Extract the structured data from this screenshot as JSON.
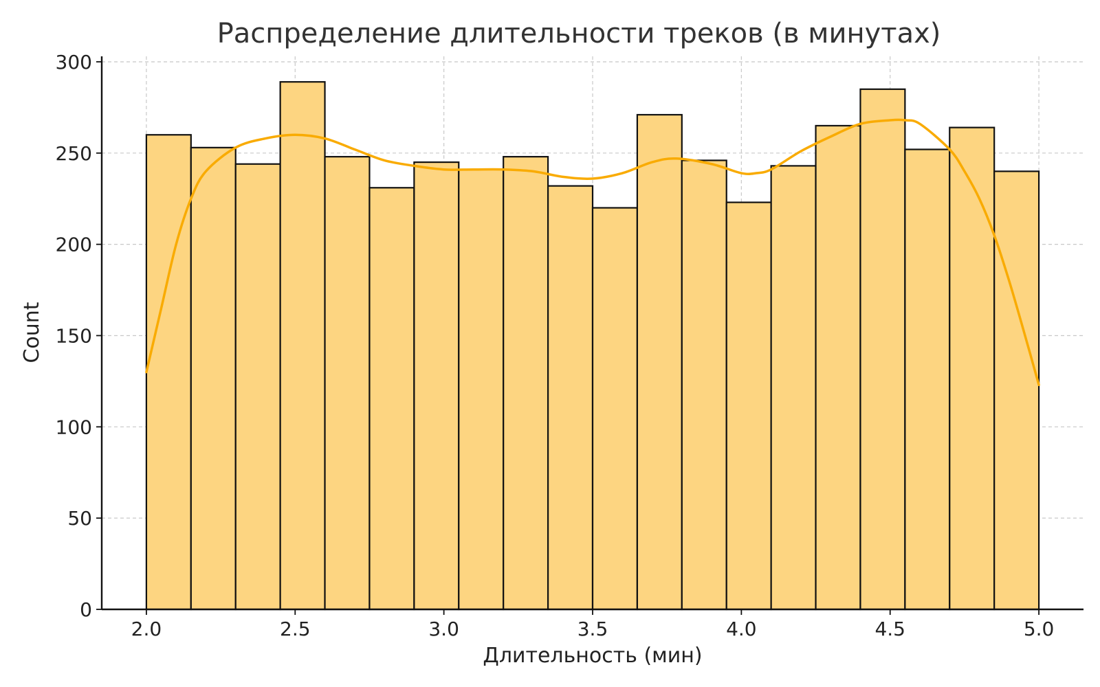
{
  "chart_data": {
    "type": "bar",
    "subtype": "histogram",
    "title": "Распределение длительности треков (в минутах)",
    "xlabel": "Длительность (мин)",
    "ylabel": "Count",
    "xlim": [
      1.85,
      5.15
    ],
    "ylim": [
      0,
      303
    ],
    "xticks": [
      "2.0",
      "2.5",
      "3.0",
      "3.5",
      "4.0",
      "4.5",
      "5.0"
    ],
    "yticks": [
      "0",
      "50",
      "100",
      "150",
      "200",
      "250",
      "300"
    ],
    "grid": true,
    "bin_start": 2.0,
    "bin_width": 0.15,
    "values": [
      260,
      253,
      244,
      289,
      248,
      231,
      245,
      241,
      248,
      232,
      220,
      271,
      246,
      223,
      243,
      265,
      285,
      252,
      264,
      240
    ],
    "kde": {
      "x": [
        2.0,
        2.05,
        2.1,
        2.15,
        2.2,
        2.3,
        2.4,
        2.5,
        2.6,
        2.7,
        2.8,
        2.9,
        3.0,
        3.1,
        3.2,
        3.3,
        3.4,
        3.5,
        3.6,
        3.7,
        3.78,
        3.9,
        4.0,
        4.05,
        4.1,
        4.2,
        4.3,
        4.4,
        4.5,
        4.55,
        4.6,
        4.7,
        4.75,
        4.8,
        4.85,
        4.9,
        4.95,
        5.0
      ],
      "y": [
        130,
        165,
        200,
        225,
        240,
        253,
        258,
        260,
        258,
        252,
        246,
        243,
        241,
        241,
        241,
        240,
        237,
        236,
        239,
        245,
        247,
        244,
        239,
        239,
        241,
        251,
        259,
        266,
        268,
        268,
        266,
        252,
        240,
        225,
        205,
        180,
        152,
        123
      ]
    },
    "colors": {
      "bar_fill": "#fdd581",
      "bar_edge": "#111111",
      "kde_line": "#f9ab02"
    }
  }
}
